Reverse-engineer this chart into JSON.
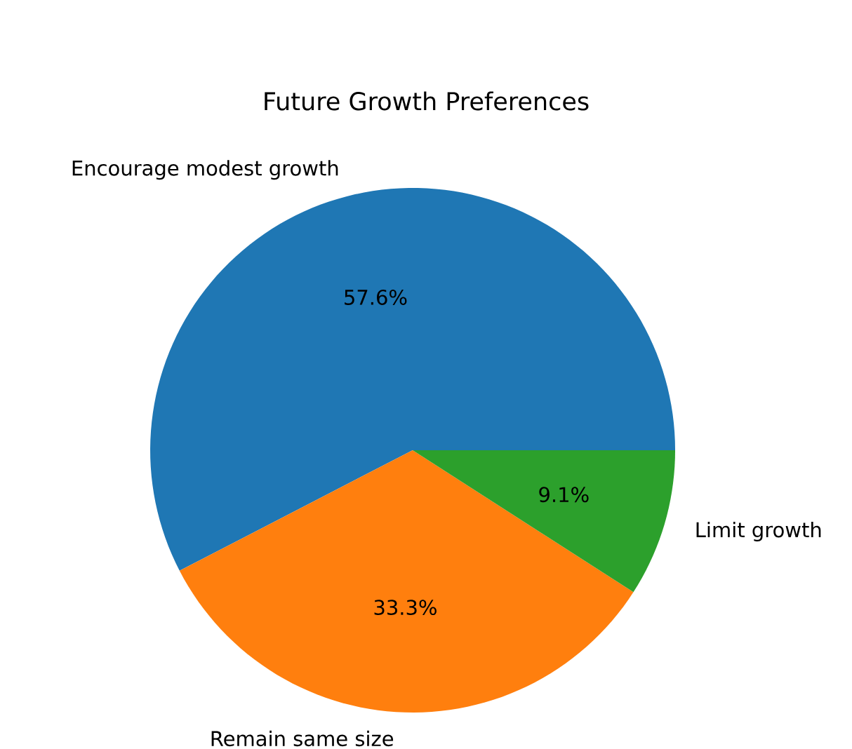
{
  "chart_data": {
    "type": "pie",
    "title": "Future Growth Preferences",
    "categories": [
      "Encourage modest growth",
      "Remain same size",
      "Limit growth"
    ],
    "values": [
      57.6,
      33.3,
      9.1
    ],
    "colors": [
      "#1f77b4",
      "#ff7f0e",
      "#2ca02c"
    ],
    "value_labels": [
      "57.6%",
      "33.3%",
      "9.1%"
    ]
  }
}
